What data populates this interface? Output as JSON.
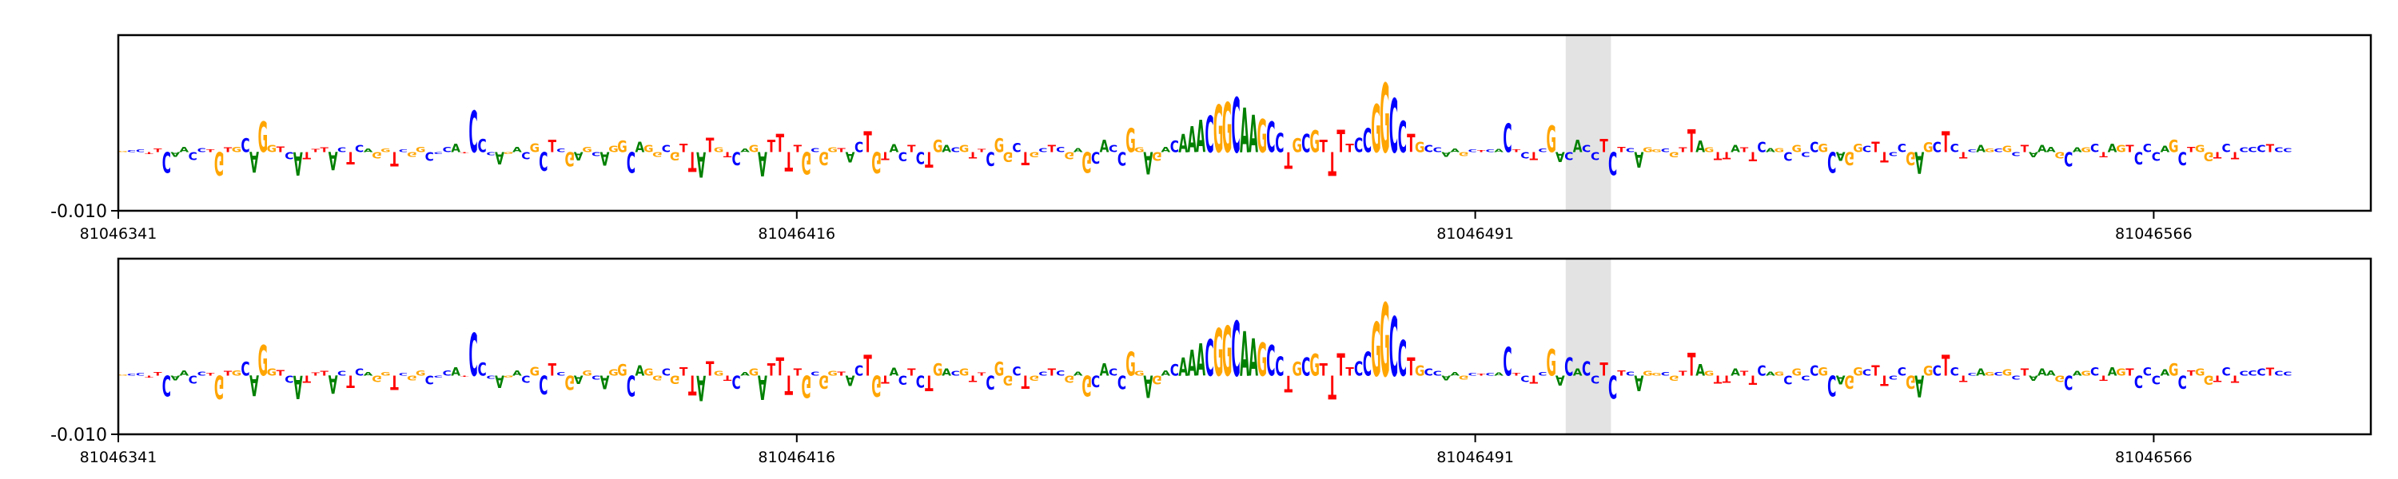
{
  "chart_data": [
    {
      "type": "sequence-logo",
      "panel": "top",
      "x_start": 81046341,
      "x_end": 81046590,
      "xlim": [
        81046341,
        81046590
      ],
      "x_ticks": [
        "81046341",
        "81046416",
        "81046491",
        "81046566"
      ],
      "x_tick_values": [
        81046341,
        81046416,
        81046491,
        81046566
      ],
      "y_tick_labels": [
        "-0.010"
      ],
      "y_tick_values": [
        -0.01
      ],
      "ylim": [
        -0.01,
        0.02
      ],
      "highlight_range": [
        81046501,
        81046506
      ],
      "sequence": "GCCTTCAACCTGTGCAGGTCATTTACTCAGGTCGGCCCATCCCAGACGCTCGAGCAGGCAGGCGTTATGTCAGATTTTGCGGTACTGTACTCTGACGTTCGGCTGCTCGAGCACCGGAGACAAACGGCAAGCCTGCGTTTTCCGGCCTGCCAAGCTCACTCTCGACACCTCTCAGGCGTTAGTTATTCAGCGCCGCAGGCTTCCGAGCTCTCAGCGCTAAAGCAGCTAGTCCCAGCTGGTCTCCCTCCGCGAATAAC",
      "importance": [
        0.0002,
        0.0003,
        0.0004,
        -0.0003,
        0.0006,
        -0.0035,
        -0.0008,
        0.0009,
        -0.0013,
        0.0007,
        0.0004,
        -0.004,
        0.0008,
        0.0009,
        0.0024,
        -0.0035,
        0.0052,
        0.0012,
        0.001,
        -0.0012,
        -0.004,
        -0.0012,
        0.0005,
        0.0008,
        -0.0031,
        0.0008,
        -0.0021,
        0.0012,
        0.0006,
        -0.0011,
        0.0006,
        -0.0025,
        0.0004,
        -0.0008,
        0.0009,
        -0.0015,
        -0.0003,
        0.0009,
        0.0014,
        -0.0002,
        0.0071,
        0.0022,
        -0.0005,
        -0.0021,
        -0.0003,
        0.0009,
        -0.0012,
        0.0015,
        -0.0032,
        0.0021,
        0.0006,
        -0.0025,
        -0.0014,
        0.0009,
        -0.0007,
        -0.0023,
        0.0011,
        0.0019,
        -0.0035,
        0.0018,
        0.0012,
        -0.0008,
        0.0012,
        -0.0014,
        0.0014,
        -0.0034,
        -0.0043,
        0.0025,
        0.0008,
        -0.0009,
        -0.0022,
        0.0006,
        0.0012,
        -0.0042,
        0.0021,
        0.0031,
        -0.0033,
        0.0012,
        -0.0038,
        0.0007,
        -0.0022,
        0.0008,
        0.0007,
        -0.0018,
        0.0018,
        0.0035,
        -0.0036,
        -0.0013,
        0.0013,
        -0.0016,
        0.0012,
        -0.002,
        -0.0027,
        0.0021,
        0.0012,
        0.0008,
        0.0012,
        -0.0011,
        0.0005,
        -0.0024,
        0.0024,
        -0.0017,
        0.0016,
        -0.0022,
        -0.0009,
        0.0007,
        0.0012,
        0.0009,
        -0.0012,
        0.0007,
        -0.0035,
        -0.0019,
        0.0021,
        0.0012,
        -0.0023,
        0.0041,
        0.0008,
        -0.0038,
        -0.0015,
        0.0009,
        0.0019,
        0.0031,
        0.0044,
        0.0055,
        0.0062,
        0.0081,
        0.0085,
        0.0094,
        0.0076,
        0.0064,
        0.0057,
        0.0052,
        0.0033,
        -0.0028,
        0.0024,
        0.0031,
        0.0037,
        0.0021,
        -0.0041,
        0.0038,
        0.0014,
        0.0025,
        0.0041,
        0.0082,
        0.0118,
        0.0092,
        0.0054,
        0.0031,
        0.0018,
        0.0012,
        0.0008,
        -0.0008,
        0.0006,
        -0.0007,
        0.0004,
        0.0003,
        0.0004,
        0.0005,
        0.0049,
        0.0004,
        -0.0011,
        -0.0013,
        0.0006,
        0.0045,
        -0.0017,
        -0.0013,
        0.0021,
        0.0012,
        -0.0013,
        0.0022,
        -0.0039,
        0.0009,
        0.0007,
        -0.0027,
        0.0008,
        0.0004,
        0.0006,
        -0.0009,
        0.0008,
        0.0039,
        0.0019,
        0.0008,
        -0.0013,
        -0.0012,
        0.0012,
        0.0008,
        -0.0016,
        0.0018,
        0.0007,
        0.0007,
        -0.0015,
        0.0012,
        -0.0008,
        0.0018,
        0.0014,
        -0.0035,
        -0.0015,
        -0.0022,
        0.0014,
        0.0011,
        0.0018,
        -0.0018,
        -0.0007,
        0.0014,
        -0.0022,
        -0.0037,
        0.0017,
        0.0018,
        0.0035,
        0.0014,
        -0.0011,
        0.0004,
        0.0012,
        0.0006,
        0.0006,
        0.0011,
        -0.0007,
        0.0012,
        -0.0009,
        0.0012,
        0.0009,
        -0.0011,
        -0.0025,
        0.0008,
        0.0008,
        0.0014,
        -0.0009,
        0.0014,
        0.0012,
        0.0012,
        -0.0021,
        0.0014,
        -0.0015,
        0.0011,
        0.0021,
        -0.0022,
        0.0009,
        0.0012,
        -0.0016,
        -0.0011,
        0.0014,
        -0.0012,
        0.0008,
        0.0009,
        0.0012,
        0.0013,
        0.0008,
        0.0007
      ]
    },
    {
      "type": "sequence-logo",
      "panel": "bottom",
      "x_start": 81046341,
      "x_end": 81046590,
      "xlim": [
        81046341,
        81046590
      ],
      "x_ticks": [
        "81046341",
        "81046416",
        "81046491",
        "81046566"
      ],
      "x_tick_values": [
        81046341,
        81046416,
        81046491,
        81046566
      ],
      "y_tick_labels": [
        "-0.010"
      ],
      "y_tick_values": [
        -0.01
      ],
      "ylim": [
        -0.01,
        0.02
      ],
      "highlight_range": [
        81046501,
        81046506
      ],
      "sequence": "GCCTTCAACCTGTGCAGGTCATTTACTCAGGTCGGCCCATCCCAGACGCTCGAGCAGGCAGGCGTTATGTCAGATTTTGCGGTACTGTACTCTGACGTTCGGCTGCTCGAGCACCGGAGACAAACGGCAAGCCTGCGTTTTCCGGCCTGCCAAGCTCACTCTCGACACCTCTCAGGCGTTAGTTATTCAGCGCCGCAGGCTTCCGAGCTCTCAGCGCTAAAGCAGCTAGTCCCAGCTGGTCTCCCTCCGCGAATAAC",
      "importance": [
        0.0002,
        0.0003,
        0.0004,
        -0.0003,
        0.0006,
        -0.0035,
        -0.0008,
        0.0009,
        -0.0013,
        0.0007,
        0.0004,
        -0.004,
        0.0008,
        0.0009,
        0.0024,
        -0.0035,
        0.0052,
        0.0012,
        0.001,
        -0.0012,
        -0.004,
        -0.0012,
        0.0005,
        0.0008,
        -0.0031,
        0.0008,
        -0.0021,
        0.0012,
        0.0006,
        -0.0011,
        0.0006,
        -0.0025,
        0.0004,
        -0.0008,
        0.0009,
        -0.0015,
        -0.0003,
        0.0009,
        0.0014,
        -0.0002,
        0.0073,
        0.0022,
        -0.0005,
        -0.0021,
        -0.0003,
        0.0009,
        -0.0012,
        0.0015,
        -0.0032,
        0.0021,
        0.0006,
        -0.0025,
        -0.0014,
        0.0009,
        -0.0007,
        -0.0023,
        0.0011,
        0.0019,
        -0.0035,
        0.0018,
        0.0012,
        -0.0008,
        0.0012,
        -0.0014,
        0.0014,
        -0.0034,
        -0.0043,
        0.0025,
        0.0008,
        -0.0009,
        -0.0022,
        0.0006,
        0.0012,
        -0.0042,
        0.0021,
        0.0031,
        -0.0033,
        0.0012,
        -0.0038,
        0.0007,
        -0.0022,
        0.0008,
        0.0007,
        -0.0018,
        0.0018,
        0.0035,
        -0.0036,
        -0.0013,
        0.0013,
        -0.0016,
        0.0012,
        -0.002,
        -0.0027,
        0.0021,
        0.0012,
        0.0008,
        0.0012,
        -0.0011,
        0.0005,
        -0.0024,
        0.0024,
        -0.0017,
        0.0016,
        -0.0022,
        -0.0009,
        0.0007,
        0.0012,
        0.0009,
        -0.0012,
        0.0007,
        -0.0035,
        -0.0019,
        0.0021,
        0.0012,
        -0.0023,
        0.0041,
        0.0008,
        -0.0038,
        -0.0015,
        0.0009,
        0.0019,
        0.0031,
        0.0044,
        0.0055,
        0.0062,
        0.0081,
        0.0085,
        0.0094,
        0.0076,
        0.0064,
        0.0057,
        0.0052,
        0.0033,
        -0.0028,
        0.0024,
        0.0031,
        0.0037,
        0.0021,
        -0.0041,
        0.0038,
        0.0014,
        0.0025,
        0.0041,
        0.0092,
        0.0125,
        0.0101,
        0.0061,
        0.0031,
        0.0018,
        0.0012,
        0.0008,
        -0.0008,
        0.0006,
        -0.0007,
        0.0004,
        0.0003,
        0.0004,
        0.0005,
        0.0049,
        0.0004,
        -0.0011,
        -0.0013,
        0.0006,
        0.0045,
        -0.0017,
        0.0031,
        0.0012,
        0.0025,
        -0.0013,
        0.0022,
        -0.0039,
        0.0009,
        0.0007,
        -0.0027,
        0.0008,
        0.0004,
        0.0006,
        -0.0009,
        0.0008,
        0.0039,
        0.0019,
        0.0008,
        -0.0013,
        -0.0012,
        0.0012,
        0.0008,
        -0.0016,
        0.0018,
        0.0007,
        0.0007,
        -0.0015,
        0.0012,
        -0.0008,
        0.0018,
        0.0014,
        -0.0035,
        -0.0015,
        -0.0022,
        0.0014,
        0.0011,
        0.0018,
        -0.0018,
        -0.0007,
        0.0014,
        -0.0022,
        -0.0037,
        0.0017,
        0.0018,
        0.0035,
        0.0014,
        -0.0011,
        0.0004,
        0.0012,
        0.0006,
        0.0006,
        0.0011,
        -0.0007,
        0.0012,
        -0.0009,
        0.0012,
        0.0009,
        -0.0011,
        -0.0025,
        0.0008,
        0.0008,
        0.0014,
        -0.0009,
        0.0014,
        0.0012,
        0.0012,
        -0.0021,
        0.0014,
        -0.0015,
        0.0011,
        0.0021,
        -0.0022,
        0.0009,
        0.0012,
        -0.0016,
        -0.0011,
        0.0014,
        -0.0012,
        0.0008,
        0.0009,
        0.0012,
        0.0013,
        0.0008,
        0.0007
      ]
    }
  ],
  "colors": {
    "A": "#008000",
    "C": "#0000ff",
    "G": "#ffa500",
    "T": "#ff0000",
    "highlight": "#e3e3e3",
    "frame": "#000000"
  }
}
